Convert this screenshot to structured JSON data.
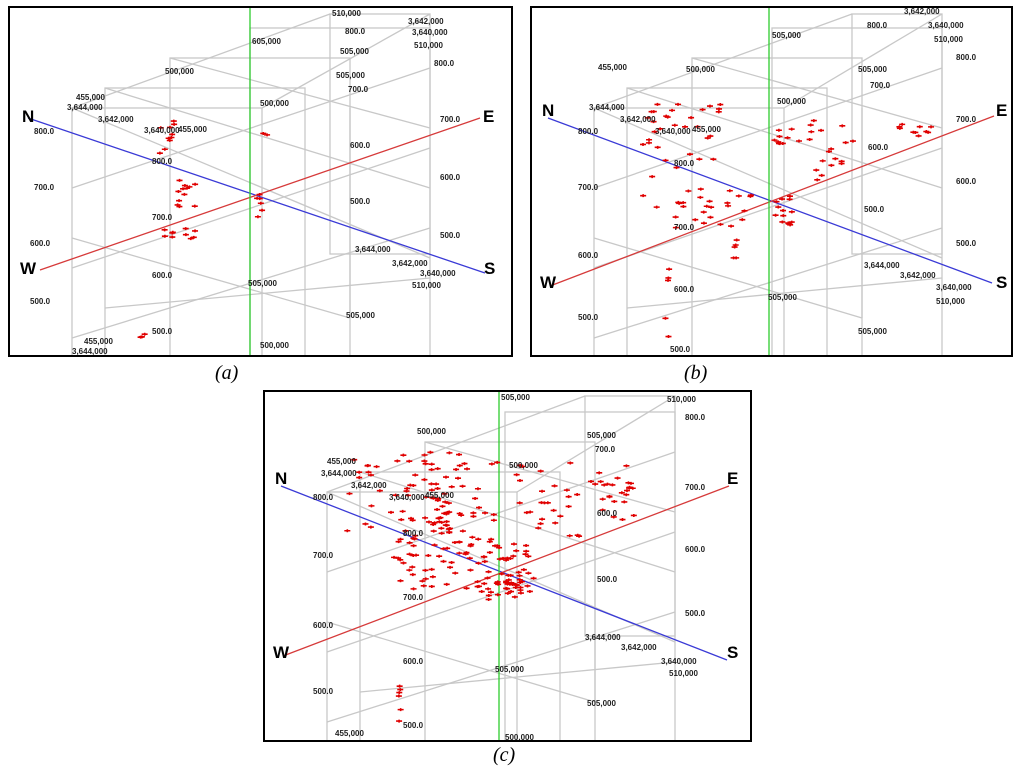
{
  "panels": [
    {
      "caption": "(a)",
      "labels": {
        "directions": {
          "n": "N",
          "e": "E",
          "w": "W",
          "s": "S"
        },
        "ticks": [
          "510,000",
          "3,642,000",
          "3,640,000",
          "505,000",
          "800.0",
          "510,000",
          "800.0",
          "500,000",
          "505,000",
          "700.0",
          "455,000",
          "3,644,000",
          "3,642,000",
          "3,640,000",
          "455,000",
          "500,000",
          "700.0",
          "800.0",
          "600.0",
          "800.0",
          "600.0",
          "700.0",
          "500.0",
          "700.0",
          "600.0",
          "500.0",
          "3,644,000",
          "3,642,000",
          "3,640,000",
          "510,000",
          "600.0",
          "505,000",
          "505,000",
          "500.0",
          "500.0",
          "455,000",
          "3,644,000",
          "500,000",
          "605,000"
        ]
      },
      "density": "sparse"
    },
    {
      "caption": "(b)",
      "labels": {
        "directions": {
          "n": "N",
          "e": "E",
          "w": "W",
          "s": "S"
        },
        "ticks": [
          "3,642,000",
          "3,640,000",
          "800.0",
          "510,000",
          "800.0",
          "505,000",
          "505,000",
          "700.0",
          "500,000",
          "455,000",
          "3,644,000",
          "3,642,000",
          "3,640,000",
          "455,000",
          "500,000",
          "700.0",
          "800.0",
          "600.0",
          "800.0",
          "600.0",
          "700.0",
          "500.0",
          "700.0",
          "600.0",
          "500.0",
          "3,644,000",
          "3,642,000",
          "3,640,000",
          "510,000",
          "600.0",
          "505,000",
          "505,000",
          "500.0",
          "500.0"
        ]
      },
      "density": "medium"
    },
    {
      "caption": "(c)",
      "labels": {
        "directions": {
          "n": "N",
          "e": "E",
          "w": "W",
          "s": "S"
        },
        "ticks": [
          "505,000",
          "510,000",
          "800.0",
          "500,000",
          "505,000",
          "700.0",
          "500,000",
          "455,000",
          "3,644,000",
          "3,642,000",
          "3,640,000",
          "455,000",
          "700.0",
          "800.0",
          "600.0",
          "800.0",
          "600.0",
          "700.0",
          "500.0",
          "700.0",
          "600.0",
          "500.0",
          "3,644,000",
          "3,642,000",
          "3,640,000",
          "510,000",
          "600.0",
          "505,000",
          "505,000",
          "500.0",
          "500.0",
          "455,000",
          "500,000"
        ]
      },
      "density": "dense"
    }
  ],
  "colors": {
    "ns_axis": "#3a3ad6",
    "ew_axis": "#d63a3a",
    "vertical_axis": "#2ecc2e",
    "grid": "#c8c8c8",
    "points": "#e00000",
    "frame": "#000000"
  }
}
